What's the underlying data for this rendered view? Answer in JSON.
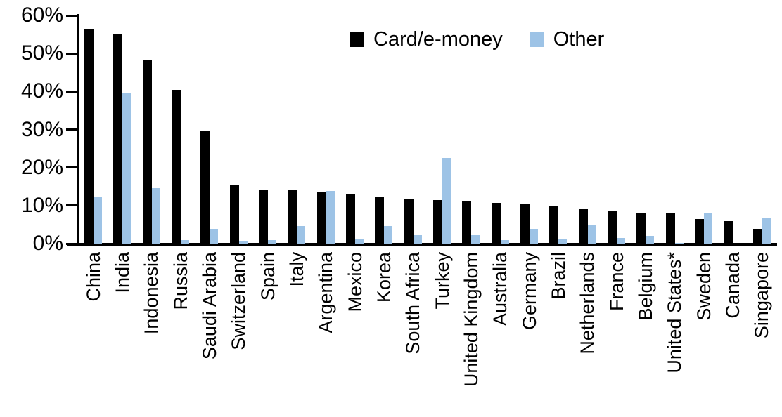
{
  "chart_data": {
    "type": "bar",
    "title": "",
    "xlabel": "",
    "ylabel": "",
    "ylim": [
      0,
      60
    ],
    "grid": false,
    "legend_position": "top-center",
    "yticks": [
      {
        "value": 0,
        "label": "0%"
      },
      {
        "value": 10,
        "label": "10%"
      },
      {
        "value": 20,
        "label": "20%"
      },
      {
        "value": 30,
        "label": "30%"
      },
      {
        "value": 40,
        "label": "40%"
      },
      {
        "value": 50,
        "label": "50%"
      },
      {
        "value": 60,
        "label": "60%"
      }
    ],
    "categories": [
      "China",
      "India",
      "Indonesia",
      "Russia",
      "Saudi Arabia",
      "Switzerland",
      "Spain",
      "Italy",
      "Argentina",
      "Mexico",
      "Korea",
      "South Africa",
      "Turkey",
      "United Kingdom",
      "Australia",
      "Germany",
      "Brazil",
      "Netherlands",
      "France",
      "Belgium",
      "United States*",
      "Sweden",
      "Canada",
      "Singapore"
    ],
    "series": [
      {
        "name": "Card/e-money",
        "color": "#000000",
        "values": [
          56.3,
          55.1,
          48.3,
          40.5,
          29.8,
          15.6,
          14.2,
          14.1,
          13.4,
          12.9,
          12.2,
          11.6,
          11.5,
          11.1,
          10.8,
          10.5,
          10.0,
          9.2,
          8.7,
          8.2,
          7.9,
          6.5,
          5.9,
          3.9
        ]
      },
      {
        "name": "Other",
        "color": "#9DC3E6",
        "values": [
          12.3,
          39.7,
          14.5,
          1.0,
          3.9,
          0.8,
          0.9,
          4.6,
          13.8,
          1.3,
          4.6,
          2.3,
          22.5,
          2.3,
          1.0,
          3.9,
          1.2,
          4.8,
          1.5,
          2.1,
          0.2,
          8.0,
          0.0,
          6.6
        ]
      }
    ]
  }
}
